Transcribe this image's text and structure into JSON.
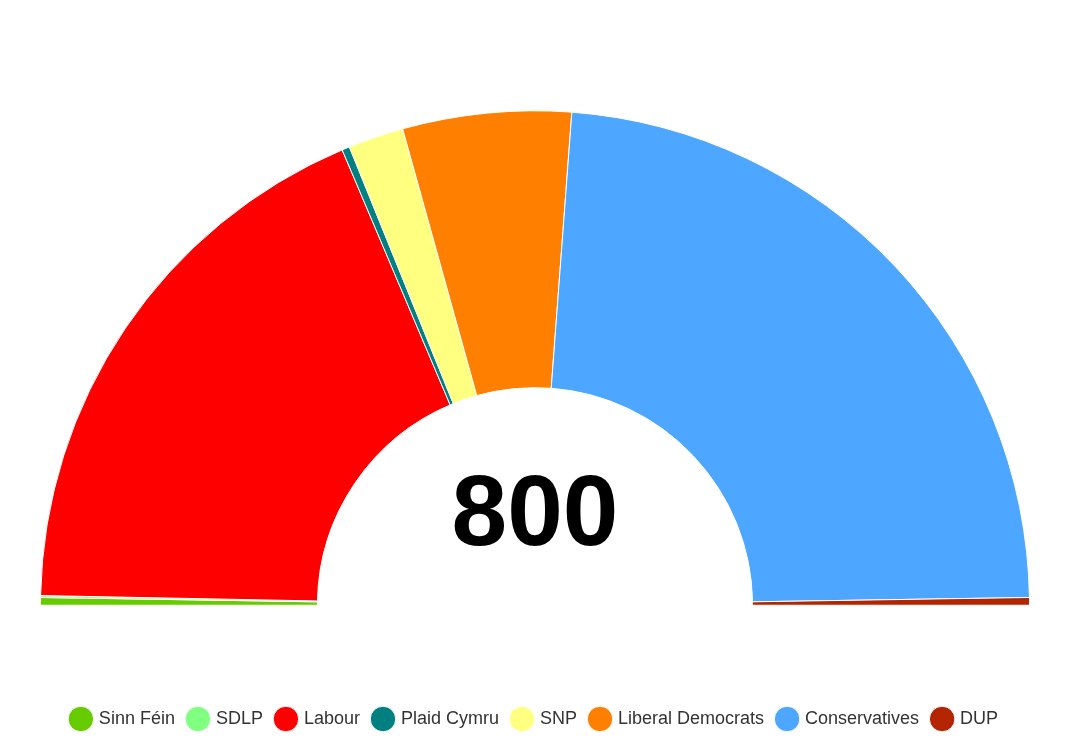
{
  "chart_data": {
    "type": "donut",
    "categories": [
      "Sinn Féin",
      "SDLP",
      "Labour",
      "Plaid Cymru",
      "SNP",
      "Liberal Democrats",
      "Conservatives",
      "DUP"
    ],
    "values": [
      0.5,
      0.125,
      36.625,
      0.5,
      3.625,
      11,
      47.125,
      0.5
    ],
    "colors": [
      "#66cc00",
      "#80ff80",
      "#ff0000",
      "#008080",
      "#ffff80",
      "#ff8000",
      "#4da6ff",
      "#b32400"
    ],
    "annotations": [
      "800"
    ],
    "legend": "bottom"
  }
}
